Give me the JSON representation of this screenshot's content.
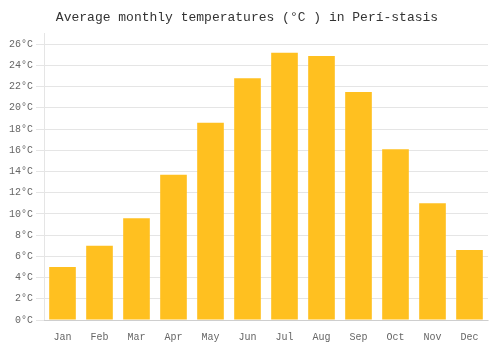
{
  "chart_data": {
    "type": "bar",
    "title": "Average monthly temperatures (°C ) in Perí‑stasis",
    "categories": [
      "Jan",
      "Feb",
      "Mar",
      "Apr",
      "May",
      "Jun",
      "Jul",
      "Aug",
      "Sep",
      "Oct",
      "Nov",
      "Dec"
    ],
    "values": [
      5.0,
      7.0,
      9.6,
      13.7,
      18.6,
      22.8,
      25.2,
      24.9,
      21.5,
      16.1,
      11.0,
      6.6
    ],
    "color": "#FFC020",
    "ylim": [
      0,
      27
    ],
    "yticks": [
      {
        "value": 0,
        "label": "0°C"
      },
      {
        "value": 2,
        "label": "2°C"
      },
      {
        "value": 4,
        "label": "4°C"
      },
      {
        "value": 6,
        "label": "6°C"
      },
      {
        "value": 8,
        "label": "8°C"
      },
      {
        "value": 10,
        "label": "10°C"
      },
      {
        "value": 12,
        "label": "12°C"
      },
      {
        "value": 14,
        "label": "14°C"
      },
      {
        "value": 16,
        "label": "16°C"
      },
      {
        "value": 18,
        "label": "18°C"
      },
      {
        "value": 20,
        "label": "20°C"
      },
      {
        "value": 22,
        "label": "22°C"
      },
      {
        "value": 24,
        "label": "24°C"
      },
      {
        "value": 26,
        "label": "26°C"
      }
    ],
    "grid": true
  }
}
